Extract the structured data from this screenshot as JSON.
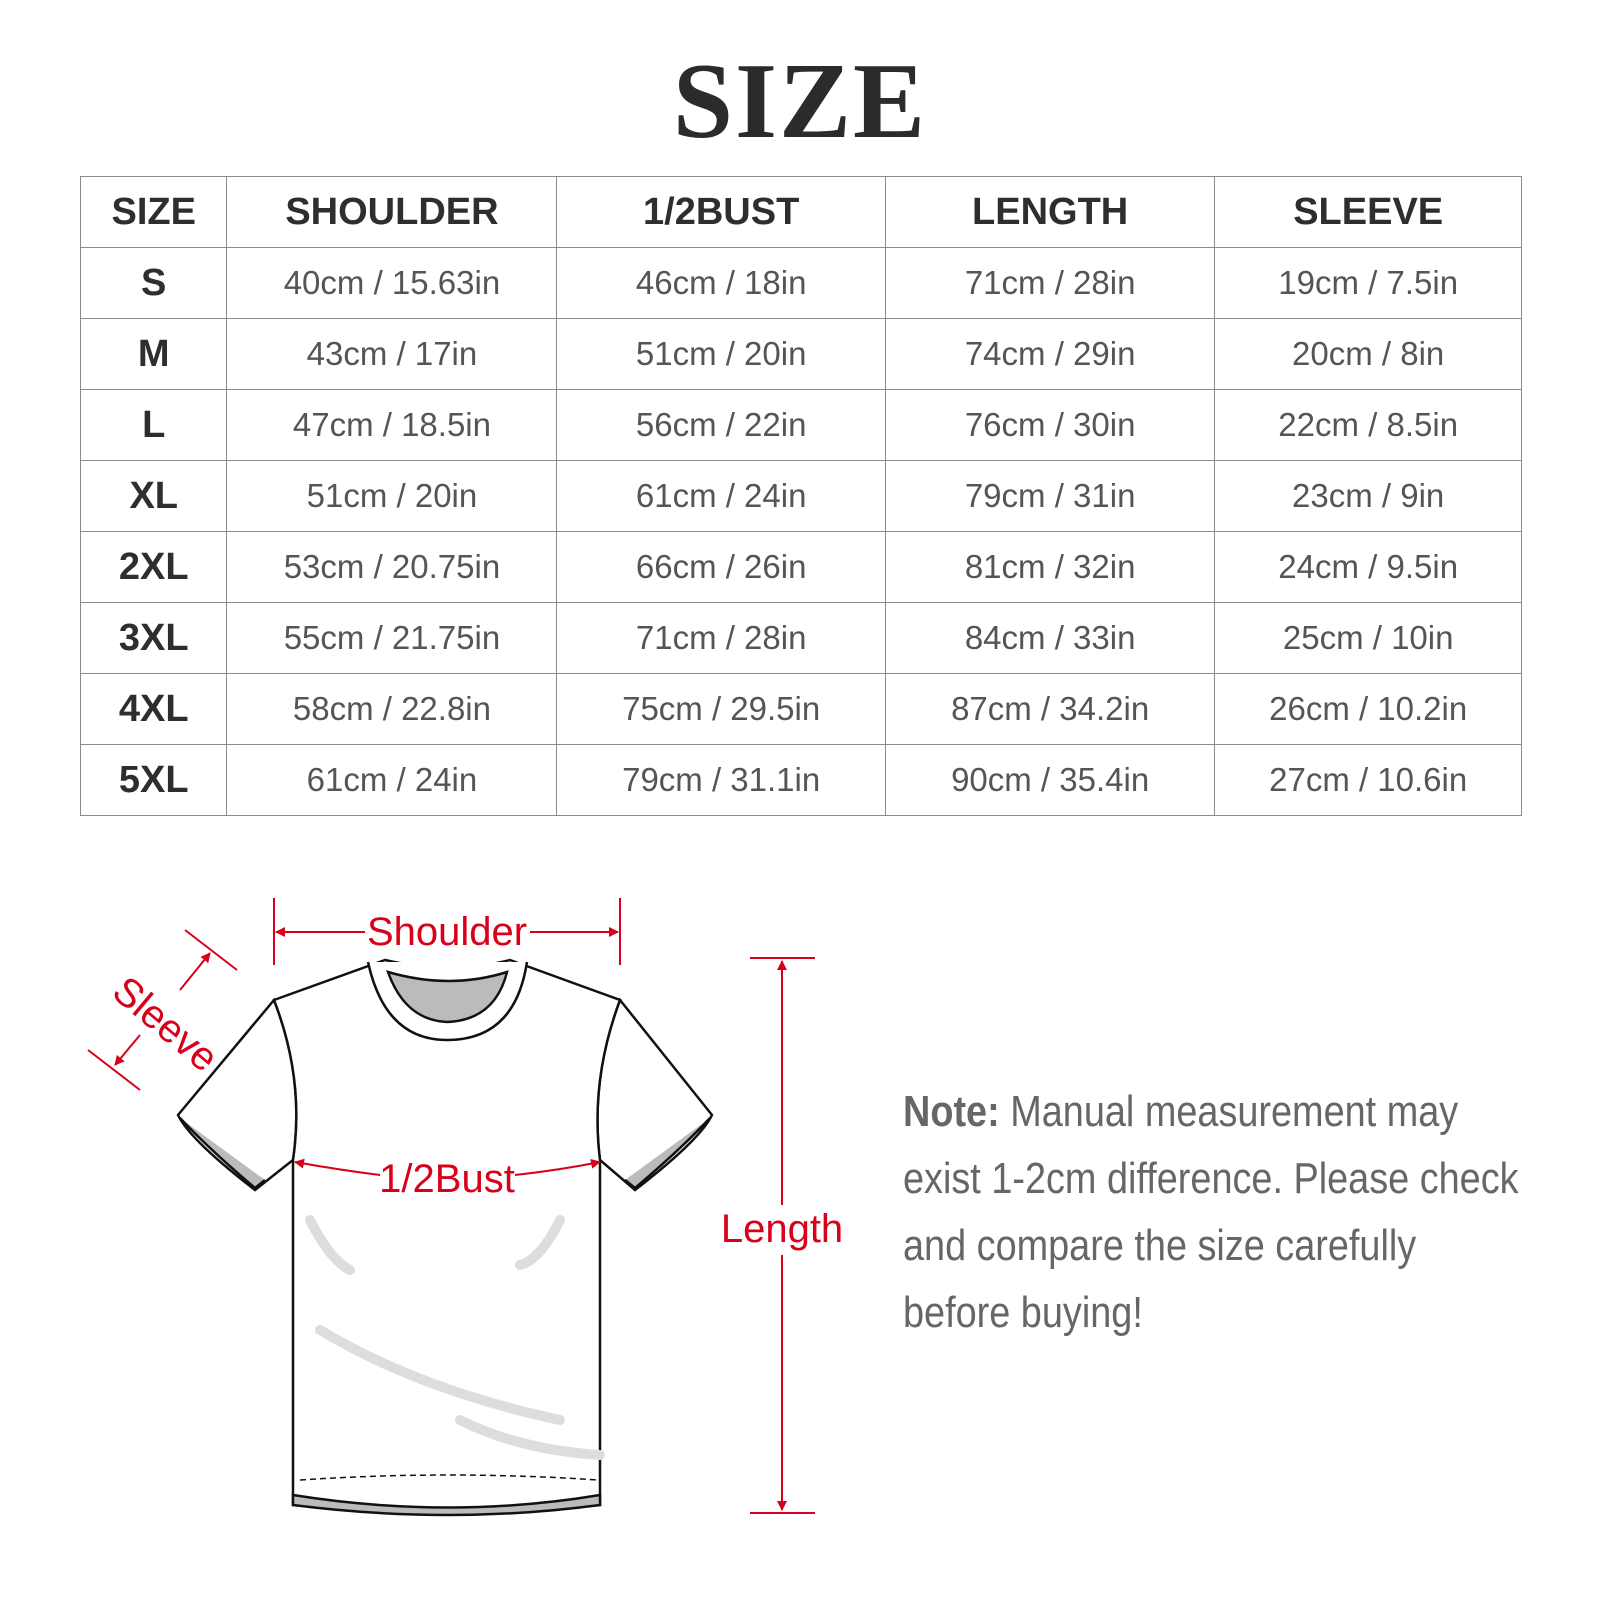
{
  "title": "SIZE",
  "table": {
    "headers": [
      "SIZE",
      "SHOULDER",
      "1/2BUST",
      "LENGTH",
      "SLEEVE"
    ],
    "rows": [
      [
        "S",
        "40cm / 15.63in",
        "46cm / 18in",
        "71cm / 28in",
        "19cm / 7.5in"
      ],
      [
        "M",
        "43cm / 17in",
        "51cm / 20in",
        "74cm / 29in",
        "20cm / 8in"
      ],
      [
        "L",
        "47cm / 18.5in",
        "56cm / 22in",
        "76cm / 30in",
        "22cm / 8.5in"
      ],
      [
        "XL",
        "51cm / 20in",
        "61cm / 24in",
        "79cm / 31in",
        "23cm / 9in"
      ],
      [
        "2XL",
        "53cm / 20.75in",
        "66cm / 26in",
        "81cm / 32in",
        "24cm / 9.5in"
      ],
      [
        "3XL",
        "55cm / 21.75in",
        "71cm / 28in",
        "84cm / 33in",
        "25cm / 10in"
      ],
      [
        "4XL",
        "58cm / 22.8in",
        "75cm / 29.5in",
        "87cm / 34.2in",
        "26cm / 10.2in"
      ],
      [
        "5XL",
        "61cm / 24in",
        "79cm / 31.1in",
        "90cm / 35.4in",
        "27cm / 10.6in"
      ]
    ]
  },
  "diagram": {
    "labels": {
      "shoulder": "Shoulder",
      "sleeve": "Sleeve",
      "bust": "1/2Bust",
      "length": "Length"
    },
    "accent_color": "#d9001b"
  },
  "note": {
    "label": "Note:",
    "text": " Manual measurement may exist 1-2cm difference. Please check and compare the size carefully before buying!"
  }
}
